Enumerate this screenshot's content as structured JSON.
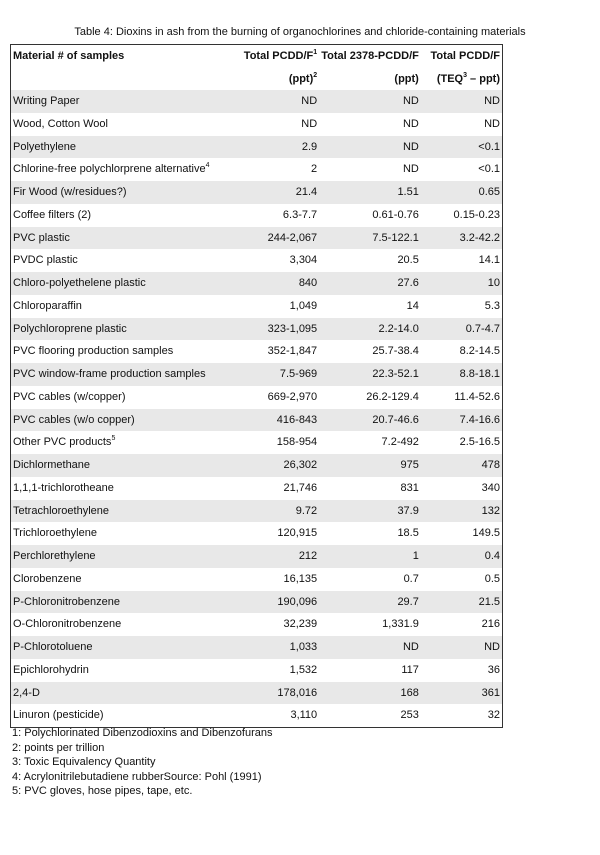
{
  "title": "Table 4: Dioxins in ash from the burning of organochlorines and chloride-containing materials",
  "header": {
    "col1": "Material # of samples",
    "col2_line1": "Total PCDD/F",
    "col2_sup": "1",
    "col2_line2": "(ppt)",
    "col2_line2_sup": "2",
    "col3_line1": "Total 2378-PCDD/F",
    "col3_line2": "(ppt)",
    "col4_line1": "Total PCDD/F",
    "col4_line2_pre": "(TEQ",
    "col4_line2_sup": "3",
    "col4_line2_post": " – ppt)"
  },
  "rows": [
    {
      "material": "Writing Paper",
      "sup": "",
      "total": "ND",
      "t2378": "ND",
      "teq": "ND"
    },
    {
      "material": "Wood, Cotton Wool",
      "sup": "",
      "total": "ND",
      "t2378": "ND",
      "teq": "ND"
    },
    {
      "material": "Polyethylene",
      "sup": "",
      "total": "2.9",
      "t2378": "ND",
      "teq": "<0.1"
    },
    {
      "material": "Chlorine-free polychlorprene alternative",
      "sup": "4",
      "total": "2",
      "t2378": "ND",
      "teq": "<0.1"
    },
    {
      "material": "Fir Wood (w/residues?)",
      "sup": "",
      "total": "21.4",
      "t2378": "1.51",
      "teq": "0.65"
    },
    {
      "material": "Coffee filters (2)",
      "sup": "",
      "total": "6.3-7.7",
      "t2378": "0.61-0.76",
      "teq": "0.15-0.23"
    },
    {
      "material": "PVC plastic",
      "sup": "",
      "total": "244-2,067",
      "t2378": "7.5-122.1",
      "teq": "3.2-42.2"
    },
    {
      "material": "PVDC plastic",
      "sup": "",
      "total": "3,304",
      "t2378": "20.5",
      "teq": "14.1"
    },
    {
      "material": "Chloro-polyethelene plastic",
      "sup": "",
      "total": "840",
      "t2378": "27.6",
      "teq": "10"
    },
    {
      "material": "Chloroparaffin",
      "sup": "",
      "total": "1,049",
      "t2378": "14",
      "teq": "5.3"
    },
    {
      "material": "Polychloroprene plastic",
      "sup": "",
      "total": "323-1,095",
      "t2378": "2.2-14.0",
      "teq": "0.7-4.7"
    },
    {
      "material": "PVC flooring production samples",
      "sup": "",
      "total": "352-1,847",
      "t2378": "25.7-38.4",
      "teq": "8.2-14.5"
    },
    {
      "material": "PVC window-frame production samples",
      "sup": "",
      "total": "7.5-969",
      "t2378": "22.3-52.1",
      "teq": "8.8-18.1"
    },
    {
      "material": "PVC cables (w/copper)",
      "sup": "",
      "total": "669-2,970",
      "t2378": "26.2-129.4",
      "teq": "11.4-52.6"
    },
    {
      "material": "PVC cables (w/o copper)",
      "sup": "",
      "total": "416-843",
      "t2378": "20.7-46.6",
      "teq": "7.4-16.6"
    },
    {
      "material": "Other PVC products",
      "sup": "5",
      "total": "158-954",
      "t2378": "7.2-492",
      "teq": "2.5-16.5"
    },
    {
      "material": "Dichlormethane",
      "sup": "",
      "total": "26,302",
      "t2378": "975",
      "teq": "478"
    },
    {
      "material": "1,1,1-trichlorotheane",
      "sup": "",
      "total": "21,746",
      "t2378": "831",
      "teq": "340"
    },
    {
      "material": "Tetrachloroethylene",
      "sup": "",
      "total": "9.72",
      "t2378": "37.9",
      "teq": "132"
    },
    {
      "material": "Trichloroethylene",
      "sup": "",
      "total": "120,915",
      "t2378": "18.5",
      "teq": "149.5"
    },
    {
      "material": "Perchlorethylene",
      "sup": "",
      "total": "212",
      "t2378": "1",
      "teq": "0.4"
    },
    {
      "material": "Clorobenzene",
      "sup": "",
      "total": "16,135",
      "t2378": "0.7",
      "teq": "0.5"
    },
    {
      "material": "P-Chloronitrobenzene",
      "sup": "",
      "total": "190,096",
      "t2378": "29.7",
      "teq": "21.5"
    },
    {
      "material": "O-Chloronitrobenzene",
      "sup": "",
      "total": "32,239",
      "t2378": "1,331.9",
      "teq": "216"
    },
    {
      "material": "P-Chlorotoluene",
      "sup": "",
      "total": "1,033",
      "t2378": "ND",
      "teq": "ND"
    },
    {
      "material": "Epichlorohydrin",
      "sup": "",
      "total": "1,532",
      "t2378": "117",
      "teq": "36"
    },
    {
      "material": "2,4-D",
      "sup": "",
      "total": "178,016",
      "t2378": "168",
      "teq": "361"
    },
    {
      "material": "Linuron (pesticide)",
      "sup": "",
      "total": "3,110",
      "t2378": "253",
      "teq": "32"
    }
  ],
  "footnotes": [
    "1: Polychlorinated Dibenzodioxins and Dibenzofurans",
    "2: points per trillion",
    "3: Toxic Equivalency Quantity",
    "4: Acrylonitrilebutadiene rubberSource: Pohl (1991)",
    "5: PVC gloves, hose pipes, tape, etc."
  ],
  "colors": {
    "row_shade": "#e8e8e8",
    "border": "#333333"
  }
}
